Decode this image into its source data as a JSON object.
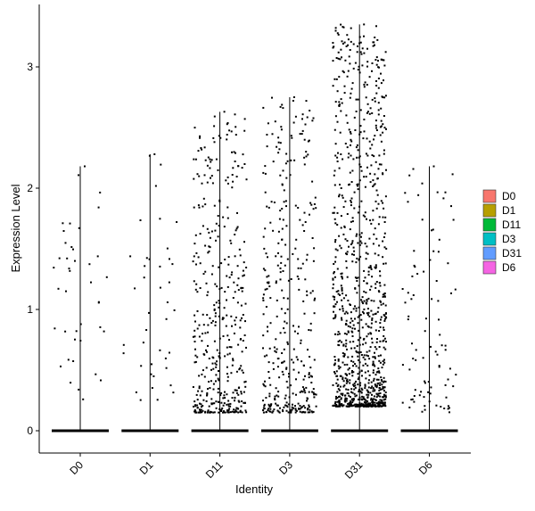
{
  "chart_data": {
    "type": "scatter",
    "subtype": "violin-jitter",
    "xlabel": "Identity",
    "ylabel": "Expression Level",
    "categories": [
      "D0",
      "D1",
      "D11",
      "D3",
      "D31",
      "D6"
    ],
    "yticks": [
      0,
      1,
      2,
      3
    ],
    "ylim": [
      -0.18,
      3.4
    ],
    "grid": false,
    "legend": {
      "position": "right",
      "entries": [
        {
          "label": "D0",
          "color": "#F8766D"
        },
        {
          "label": "D1",
          "color": "#B79F00"
        },
        {
          "label": "D11",
          "color": "#00BA38"
        },
        {
          "label": "D3",
          "color": "#00BFC4"
        },
        {
          "label": "D31",
          "color": "#619CFF"
        },
        {
          "label": "D6",
          "color": "#F564E3"
        }
      ]
    },
    "groups": [
      {
        "name": "D0",
        "max": 2.18,
        "nonzero_points": 40,
        "nonzero_min": 0.25,
        "nonzero_max": 2.18
      },
      {
        "name": "D1",
        "max": 2.28,
        "nonzero_points": 40,
        "nonzero_min": 0.25,
        "nonzero_max": 2.28
      },
      {
        "name": "D11",
        "max": 2.63,
        "nonzero_points": 420,
        "nonzero_min": 0.15,
        "nonzero_max": 2.63
      },
      {
        "name": "D3",
        "max": 2.75,
        "nonzero_points": 360,
        "nonzero_min": 0.15,
        "nonzero_max": 2.75
      },
      {
        "name": "D31",
        "max": 3.35,
        "nonzero_points": 1000,
        "nonzero_min": 0.2,
        "nonzero_max": 3.35
      },
      {
        "name": "D6",
        "max": 2.18,
        "nonzero_points": 90,
        "nonzero_min": 0.15,
        "nonzero_max": 2.18
      }
    ]
  }
}
